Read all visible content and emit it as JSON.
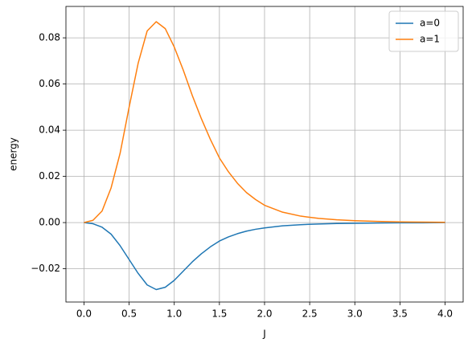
{
  "chart_data": {
    "type": "line",
    "xlabel": "J",
    "ylabel": "energy",
    "x": [
      0,
      0.1,
      0.2,
      0.3,
      0.4,
      0.5,
      0.6,
      0.7,
      0.8,
      0.9,
      1.0,
      1.1,
      1.2,
      1.3,
      1.4,
      1.5,
      1.6,
      1.7,
      1.8,
      1.9,
      2.0,
      2.2,
      2.4,
      2.6,
      2.8,
      3.0,
      3.25,
      3.5,
      3.75,
      4.0
    ],
    "series": [
      {
        "name": "a=0",
        "color": "#1f77b4",
        "values": [
          0,
          -0.0005,
          -0.002,
          -0.005,
          -0.01,
          -0.016,
          -0.022,
          -0.027,
          -0.029,
          -0.028,
          -0.025,
          -0.021,
          -0.017,
          -0.0135,
          -0.0105,
          -0.008,
          -0.0062,
          -0.0048,
          -0.0037,
          -0.0029,
          -0.0023,
          -0.0014,
          -0.0009,
          -0.0006,
          -0.0004,
          -0.0003,
          -0.0002,
          -0.0001,
          -0.0001,
          0
        ]
      },
      {
        "name": "a=1",
        "color": "#ff7f0e",
        "values": [
          0,
          0.001,
          0.005,
          0.015,
          0.03,
          0.05,
          0.069,
          0.083,
          0.087,
          0.084,
          0.076,
          0.066,
          0.055,
          0.045,
          0.036,
          0.028,
          0.022,
          0.017,
          0.013,
          0.01,
          0.0075,
          0.0045,
          0.0028,
          0.0018,
          0.0012,
          0.0008,
          0.0005,
          0.0003,
          0.0002,
          0.0001
        ]
      }
    ],
    "xlim": [
      -0.2,
      4.2
    ],
    "ylim": [
      -0.0344,
      0.0936
    ],
    "xticks": [
      {
        "value": 0,
        "label": "0.0"
      },
      {
        "value": 0.5,
        "label": "0.5"
      },
      {
        "value": 1,
        "label": "1.0"
      },
      {
        "value": 1.5,
        "label": "1.5"
      },
      {
        "value": 2,
        "label": "2.0"
      },
      {
        "value": 2.5,
        "label": "2.5"
      },
      {
        "value": 3,
        "label": "3.0"
      },
      {
        "value": 3.5,
        "label": "3.5"
      },
      {
        "value": 4,
        "label": "4.0"
      }
    ],
    "yticks": [
      {
        "value": -0.02,
        "label": "−0.02"
      },
      {
        "value": 0,
        "label": "0.00"
      },
      0.02,
      0.04,
      0.06,
      0.08
    ],
    "grid": true,
    "legend": "upper-right"
  }
}
